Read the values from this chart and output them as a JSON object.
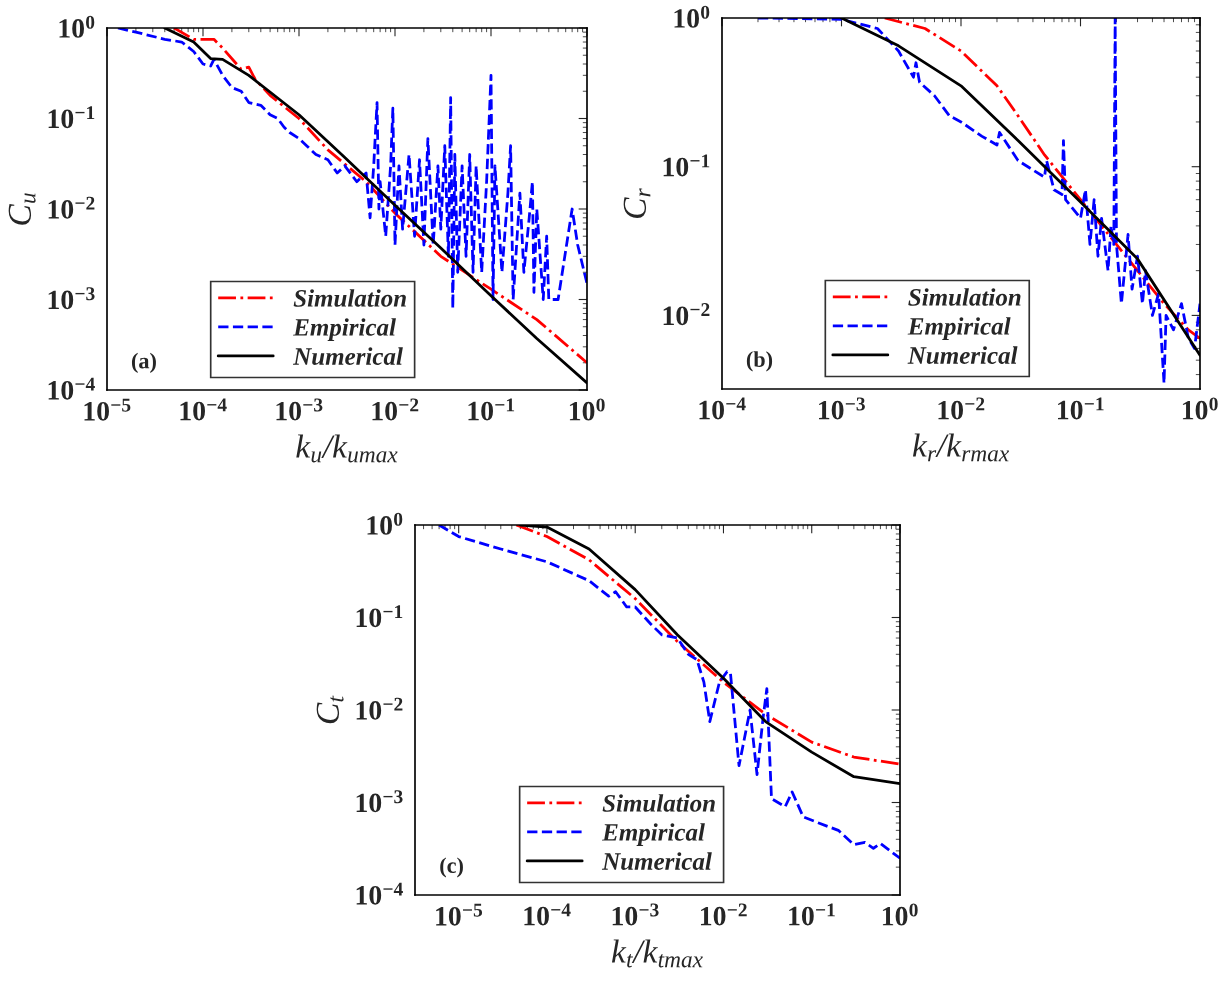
{
  "chart_data": [
    {
      "type": "line",
      "xlabel": "k$_{u}$/k$_{umax}$",
      "ylabel": "C$_{u}$",
      "log": "xy",
      "legend": "bottom left",
      "grid": false,
      "annotations": [
        "(a)"
      ],
      "xlim": [
        1e-05,
        1
      ],
      "ylim": [
        0.0001,
        1
      ],
      "xticks": [
        {
          "value": 1e-05,
          "label": "10$^{−5}$"
        },
        {
          "value": 0.0001,
          "label": "10$^{−4}$"
        },
        {
          "value": 0.001,
          "label": "10$^{−3}$"
        },
        {
          "value": 0.01,
          "label": "10$^{−2}$"
        },
        {
          "value": 0.1,
          "label": "10$^{−1}$"
        },
        {
          "value": 1,
          "label": "10$^{0}$"
        }
      ],
      "yticks": [
        {
          "value": 0.0001,
          "label": "10$^{−4}$"
        },
        {
          "value": 0.001,
          "label": "10$^{−3}$"
        },
        {
          "value": 0.01,
          "label": "10$^{−2}$"
        },
        {
          "value": 0.1,
          "label": "10$^{−1}$"
        },
        {
          "value": 1,
          "label": "10$^{0}$"
        }
      ],
      "series": [
        {
          "name": "Simulation",
          "color": "#ff0000",
          "line_style": "dashdot",
          "x": [
            5e-05,
            8e-05,
            0.00013,
            0.00016,
            0.00025,
            0.0003,
            0.00035,
            0.0005,
            0.001,
            0.002,
            0.005,
            0.01,
            0.03,
            0.1,
            0.3,
            1
          ],
          "values": [
            1,
            0.75,
            0.75,
            0.6,
            0.35,
            0.37,
            0.27,
            0.18,
            0.1,
            0.045,
            0.02,
            0.009,
            0.003,
            0.0013,
            0.0006,
            0.0002
          ]
        },
        {
          "name": "Empirical",
          "color": "#0000ff",
          "line_style": "dashed",
          "x": [
            1.3e-05,
            2e-05,
            4e-05,
            6e-05,
            8e-05,
            0.0001,
            0.00012,
            0.00013,
            0.00016,
            0.0002,
            0.00025,
            0.0003,
            0.0004,
            0.0005,
            0.0006,
            0.0007,
            0.0008,
            0.001,
            0.0012,
            0.0015,
            0.002,
            0.0025,
            0.003,
            0.004,
            0.005,
            0.0055,
            0.006,
            0.0065,
            0.0068,
            0.007,
            0.008,
            0.009,
            0.0095,
            0.01,
            0.011,
            0.012,
            0.014,
            0.016,
            0.018,
            0.02,
            0.022,
            0.025,
            0.028,
            0.03,
            0.033,
            0.036,
            0.038,
            0.04,
            0.042,
            0.045,
            0.05,
            0.055,
            0.06,
            0.065,
            0.07,
            0.08,
            0.09,
            0.1,
            0.105,
            0.11,
            0.13,
            0.15,
            0.16,
            0.17,
            0.2,
            0.22,
            0.25,
            0.27,
            0.28,
            0.3,
            0.35,
            0.38,
            0.4,
            0.5,
            0.7,
            0.8,
            1
          ],
          "values": [
            1,
            0.9,
            0.75,
            0.7,
            0.55,
            0.4,
            0.38,
            0.45,
            0.3,
            0.22,
            0.2,
            0.15,
            0.14,
            0.11,
            0.1,
            0.08,
            0.07,
            0.06,
            0.05,
            0.04,
            0.035,
            0.025,
            0.03,
            0.02,
            0.025,
            0.008,
            0.03,
            0.15,
            0.01,
            0.02,
            0.005,
            0.03,
            0.13,
            0.004,
            0.03,
            0.006,
            0.04,
            0.005,
            0.035,
            0.004,
            0.06,
            0.004,
            0.03,
            0.006,
            0.05,
            0.003,
            0.17,
            0.0008,
            0.04,
            0.002,
            0.03,
            0.003,
            0.04,
            0.002,
            0.03,
            0.002,
            0.02,
            0.3,
            0.001,
            0.03,
            0.002,
            0.015,
            0.05,
            0.001,
            0.015,
            0.002,
            0.008,
            0.02,
            0.0012,
            0.01,
            0.001,
            0.005,
            0.001,
            0.001,
            0.01,
            0.004,
            0.0015
          ]
        },
        {
          "name": "Numerical",
          "color": "#000000",
          "line_style": "solid",
          "x": [
            4e-05,
            8e-05,
            0.00012,
            0.00016,
            0.0003,
            0.001,
            0.003,
            0.01,
            0.03,
            0.1,
            0.3,
            1
          ],
          "values": [
            1,
            0.7,
            0.46,
            0.45,
            0.3,
            0.11,
            0.037,
            0.011,
            0.0037,
            0.0011,
            0.00037,
            0.00012
          ]
        }
      ]
    },
    {
      "type": "line",
      "xlabel": "k$_{r}$/k$_{rmax}$",
      "ylabel": "C$_{r}$",
      "log": "xy",
      "legend": "bottom left",
      "grid": false,
      "annotations": [
        "(b)"
      ],
      "xlim": [
        0.0001,
        1
      ],
      "ylim": [
        0.0032,
        1
      ],
      "xticks": [
        {
          "value": 0.0001,
          "label": "10$^{−4}$"
        },
        {
          "value": 0.001,
          "label": "10$^{−3}$"
        },
        {
          "value": 0.01,
          "label": "10$^{−2}$"
        },
        {
          "value": 0.1,
          "label": "10$^{−1}$"
        },
        {
          "value": 1,
          "label": "10$^{0}$"
        }
      ],
      "yticks": [
        {
          "value": 0.01,
          "label": "10$^{−2}$"
        },
        {
          "value": 0.1,
          "label": "10$^{−1}$"
        },
        {
          "value": 1,
          "label": "10$^{0}$"
        }
      ],
      "series": [
        {
          "name": "Simulation",
          "color": "#ff0000",
          "line_style": "dashdot",
          "x": [
            0.0023,
            0.005,
            0.01,
            0.02,
            0.03,
            0.05,
            0.1,
            0.3,
            0.5,
            0.8,
            1
          ],
          "values": [
            1,
            0.85,
            0.6,
            0.35,
            0.22,
            0.12,
            0.06,
            0.02,
            0.012,
            0.008,
            0.007
          ]
        },
        {
          "name": "Empirical",
          "color": "#0000ff",
          "line_style": "dashed",
          "x": [
            0.0002,
            0.001,
            0.002,
            0.003,
            0.004,
            0.0042,
            0.0045,
            0.006,
            0.008,
            0.01,
            0.015,
            0.02,
            0.021,
            0.03,
            0.05,
            0.052,
            0.06,
            0.07,
            0.072,
            0.075,
            0.09,
            0.1,
            0.11,
            0.12,
            0.13,
            0.14,
            0.15,
            0.17,
            0.18,
            0.19,
            0.195,
            0.2,
            0.22,
            0.25,
            0.27,
            0.3,
            0.33,
            0.35,
            0.4,
            0.45,
            0.5,
            0.52,
            0.6,
            0.7,
            0.8,
            0.9,
            1
          ],
          "values": [
            1,
            0.98,
            0.85,
            0.6,
            0.4,
            0.5,
            0.37,
            0.3,
            0.22,
            0.2,
            0.16,
            0.14,
            0.17,
            0.11,
            0.085,
            0.11,
            0.07,
            0.065,
            0.15,
            0.06,
            0.05,
            0.045,
            0.07,
            0.03,
            0.06,
            0.025,
            0.045,
            0.02,
            0.04,
            0.03,
            1,
            0.03,
            0.012,
            0.035,
            0.015,
            0.025,
            0.012,
            0.02,
            0.01,
            0.014,
            0.0035,
            0.01,
            0.008,
            0.012,
            0.007,
            0.006,
            0.012
          ]
        },
        {
          "name": "Numerical",
          "color": "#000000",
          "line_style": "solid",
          "x": [
            0.001,
            0.003,
            0.01,
            0.03,
            0.1,
            0.3,
            1
          ],
          "values": [
            1,
            0.65,
            0.35,
            0.15,
            0.058,
            0.024,
            0.0054
          ]
        }
      ]
    },
    {
      "type": "line",
      "xlabel": "k$_{t}$/k$_{tmax}$",
      "ylabel": "C$_{t}$",
      "log": "xy",
      "legend": "bottom left",
      "grid": false,
      "annotations": [
        "(c)"
      ],
      "xlim": [
        3.2e-06,
        1
      ],
      "ylim": [
        0.0001,
        1
      ],
      "xticks": [
        {
          "value": 1e-05,
          "label": "10$^{−5}$"
        },
        {
          "value": 0.0001,
          "label": "10$^{−4}$"
        },
        {
          "value": 0.001,
          "label": "10$^{−3}$"
        },
        {
          "value": 0.01,
          "label": "10$^{−2}$"
        },
        {
          "value": 0.1,
          "label": "10$^{−1}$"
        },
        {
          "value": 1,
          "label": "10$^{0}$"
        }
      ],
      "yticks": [
        {
          "value": 0.0001,
          "label": "10$^{−4}$"
        },
        {
          "value": 0.001,
          "label": "10$^{−3}$"
        },
        {
          "value": 0.01,
          "label": "10$^{−2}$"
        },
        {
          "value": 0.1,
          "label": "10$^{−1}$"
        },
        {
          "value": 1,
          "label": "10$^{0}$"
        }
      ],
      "series": [
        {
          "name": "Simulation",
          "color": "#ff0000",
          "line_style": "dashdot",
          "x": [
            4.5e-05,
            0.0001,
            0.0003,
            0.001,
            0.003,
            0.01,
            0.03,
            0.1,
            0.3,
            1
          ],
          "values": [
            1,
            0.75,
            0.42,
            0.16,
            0.055,
            0.02,
            0.009,
            0.0045,
            0.0031,
            0.0026
          ]
        },
        {
          "name": "Empirical",
          "color": "#0000ff",
          "line_style": "dashed",
          "x": [
            6e-06,
            1e-05,
            3e-05,
            0.0001,
            0.0003,
            0.0005,
            0.0006,
            0.0008,
            0.001,
            0.0015,
            0.002,
            0.003,
            0.004,
            0.005,
            0.006,
            0.007,
            0.009,
            0.011,
            0.012,
            0.015,
            0.02,
            0.024,
            0.028,
            0.031,
            0.035,
            0.05,
            0.06,
            0.08,
            0.12,
            0.2,
            0.3,
            0.4,
            0.5,
            0.6,
            1
          ],
          "values": [
            1,
            0.75,
            0.55,
            0.4,
            0.25,
            0.17,
            0.19,
            0.13,
            0.13,
            0.085,
            0.065,
            0.06,
            0.04,
            0.035,
            0.02,
            0.0075,
            0.02,
            0.026,
            0.025,
            0.0025,
            0.01,
            0.002,
            0.008,
            0.017,
            0.0011,
            0.0009,
            0.0013,
            0.0007,
            0.0006,
            0.0005,
            0.00035,
            0.00037,
            0.00032,
            0.00036,
            0.00025
          ]
        },
        {
          "name": "Numerical",
          "color": "#000000",
          "line_style": "solid",
          "x": [
            5e-05,
            0.0001,
            0.0003,
            0.001,
            0.003,
            0.01,
            0.03,
            0.1,
            0.3,
            1
          ],
          "values": [
            1,
            0.95,
            0.55,
            0.2,
            0.065,
            0.022,
            0.0075,
            0.0035,
            0.0019,
            0.0016
          ]
        }
      ]
    }
  ]
}
